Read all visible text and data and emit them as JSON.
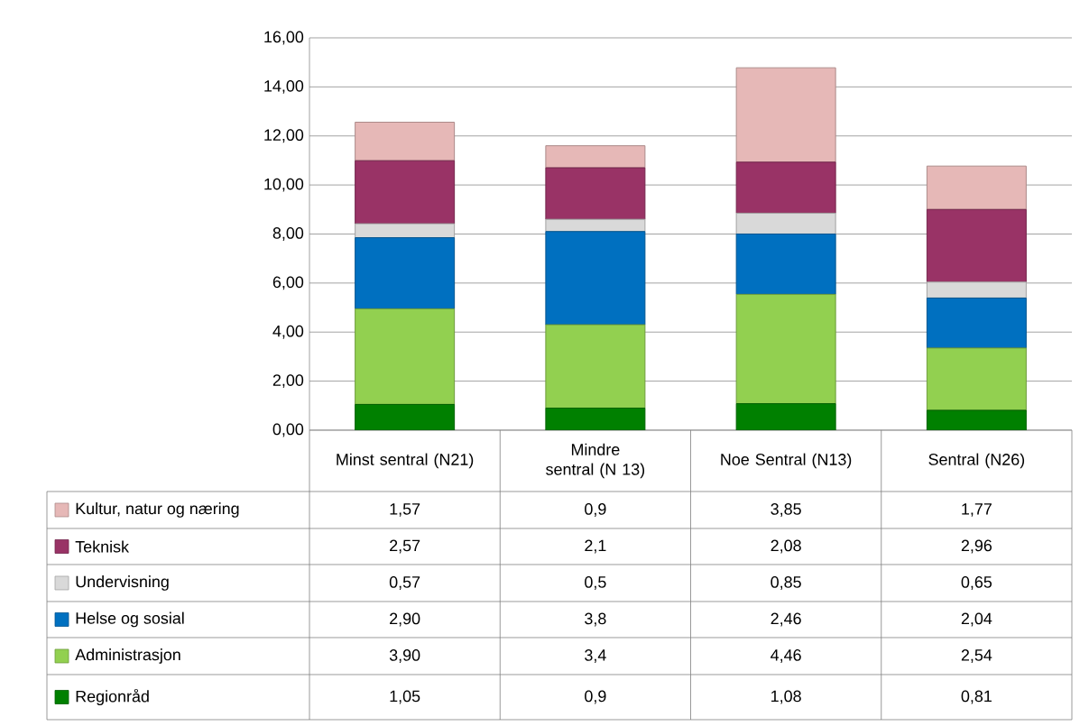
{
  "chart_data": {
    "type": "bar",
    "stacked": true,
    "categories": [
      "Minst sentral (N21)",
      "Mindre sentral (N 13)",
      "Noe Sentral (N13)",
      "Sentral (N26)"
    ],
    "series": [
      {
        "name": "Regionråd",
        "color": "#008000",
        "values": [
          1.05,
          0.9,
          1.08,
          0.81
        ],
        "value_labels": [
          "1,05",
          "0,9",
          "1,08",
          "0,81"
        ]
      },
      {
        "name": "Administrasjon",
        "color": "#92d050",
        "values": [
          3.9,
          3.4,
          4.46,
          2.54
        ],
        "value_labels": [
          "3,90",
          "3,4",
          "4,46",
          "2,54"
        ]
      },
      {
        "name": "Helse og sosial",
        "color": "#0070c0",
        "values": [
          2.9,
          3.8,
          2.46,
          2.04
        ],
        "value_labels": [
          "2,90",
          "3,8",
          "2,46",
          "2,04"
        ]
      },
      {
        "name": "Undervisning",
        "color": "#d9d9d9",
        "values": [
          0.57,
          0.5,
          0.85,
          0.65
        ],
        "value_labels": [
          "0,57",
          "0,5",
          "0,85",
          "0,65"
        ]
      },
      {
        "name": "Teknisk",
        "color": "#993366",
        "values": [
          2.57,
          2.1,
          2.08,
          2.96
        ],
        "value_labels": [
          "2,57",
          "2,1",
          "2,08",
          "2,96"
        ]
      },
      {
        "name": "Kultur, natur og næring",
        "color": "#e6b8b7",
        "values": [
          1.57,
          0.9,
          3.85,
          1.77
        ],
        "value_labels": [
          "1,57",
          "0,9",
          "3,85",
          "1,77"
        ]
      }
    ],
    "ylim": [
      0,
      16
    ],
    "yticks": [
      {
        "value": 0,
        "label": "0,00"
      },
      {
        "value": 2,
        "label": "2,00"
      },
      {
        "value": 4,
        "label": "4,00"
      },
      {
        "value": 6,
        "label": "6,00"
      },
      {
        "value": 8,
        "label": "8,00"
      },
      {
        "value": 10,
        "label": "10,00"
      },
      {
        "value": 12,
        "label": "12,00"
      },
      {
        "value": 14,
        "label": "14,00"
      },
      {
        "value": 16,
        "label": "16,00"
      }
    ],
    "grid": "y",
    "legend": "bottom"
  }
}
